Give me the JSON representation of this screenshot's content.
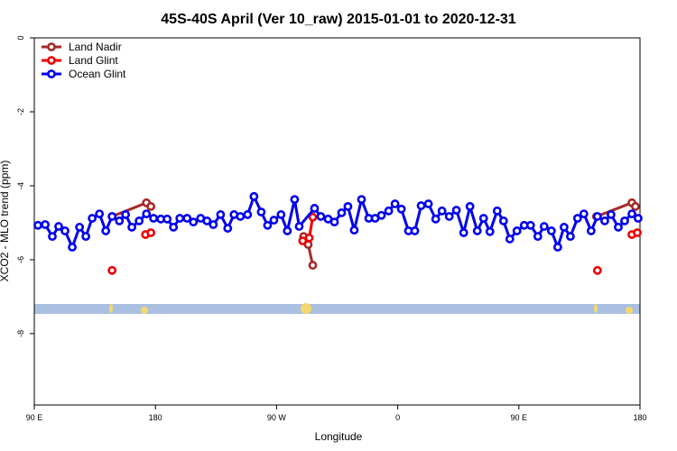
{
  "chart_data": {
    "type": "line",
    "title": "45S-40S April (Ver 10_raw)   2015-01-01 to 2020-12-31",
    "x_label": "Longitude",
    "y_label": "XCO2 - MLO trend (ppm)",
    "xlim": [
      90,
      540
    ],
    "ylim": [
      -9.93,
      0
    ],
    "xticks": [
      {
        "value": 90,
        "label": "90 E"
      },
      180,
      {
        "value": 270,
        "label": "90 W"
      },
      {
        "value": 360,
        "label": "0"
      },
      {
        "value": 450,
        "label": "90 E"
      },
      {
        "value": 540,
        "label": "180"
      }
    ],
    "yticks": [
      0,
      -2,
      -4,
      -6,
      -8
    ],
    "legend": "top-left",
    "series": [
      {
        "name": "Land Nadir",
        "color": "#a52a2a",
        "x": [
          147.8,
          173.3,
          176.6,
          null,
          290.1,
          293.5,
          296.9,
          null,
          507.7,
          534.0,
          536.6
        ],
        "values": [
          -4.83,
          -4.46,
          -4.56,
          null,
          -5.37,
          -5.59,
          -6.15,
          null,
          -4.83,
          -4.46,
          -4.56
        ]
      },
      {
        "name": "Land Glint",
        "color": "#ee0000",
        "x": [
          147.8,
          null,
          172.6,
          176.6,
          null,
          289.4,
          294.2,
          296.9,
          null,
          508.4,
          null,
          534.0,
          538.0
        ],
        "values": [
          -6.29,
          null,
          -5.32,
          -5.27,
          null,
          -5.49,
          -5.41,
          -4.85,
          null,
          -6.29,
          null,
          -5.32,
          -5.27
        ]
      },
      {
        "name": "Ocean Glint",
        "color": "#0000ee",
        "x": [
          92.7,
          98.1,
          103.4,
          108.1,
          112.8,
          118.2,
          123.6,
          128.3,
          133.0,
          138.4,
          143.1,
          147.8,
          153.2,
          157.8,
          162.5,
          167.9,
          173.3,
          178.6,
          184.0,
          188.7,
          193.4,
          198.1,
          203.5,
          208.2,
          213.6,
          218.3,
          223.0,
          228.4,
          233.7,
          238.4,
          243.1,
          248.5,
          253.2,
          258.6,
          263.3,
          268.0,
          273.3,
          278.0,
          283.4,
          286.8,
          298.2,
          302.9,
          308.3,
          313.0,
          318.3,
          323.0,
          327.7,
          333.1,
          338.5,
          343.2,
          347.9,
          353.3,
          358.0,
          362.7,
          368.0,
          372.7,
          377.4,
          382.8,
          388.2,
          392.9,
          398.3,
          403.6,
          409.0,
          413.7,
          419.1,
          423.8,
          428.5,
          433.9,
          438.6,
          443.3,
          448.6,
          454.0,
          458.7,
          464.1,
          468.8,
          474.2,
          478.9,
          483.6,
          488.3,
          493.6,
          498.3,
          503.7,
          508.4,
          513.8,
          518.5,
          523.9,
          528.6,
          534.0,
          538.6
        ],
        "values": [
          -5.07,
          -5.05,
          -5.37,
          -5.1,
          -5.22,
          -5.66,
          -5.12,
          -5.37,
          -4.88,
          -4.76,
          -5.22,
          -4.83,
          -4.95,
          -4.78,
          -5.12,
          -4.95,
          -4.76,
          -4.88,
          -4.9,
          -4.9,
          -5.12,
          -4.88,
          -4.88,
          -4.98,
          -4.88,
          -4.95,
          -5.05,
          -4.78,
          -5.15,
          -4.78,
          -4.83,
          -4.78,
          -4.29,
          -4.71,
          -5.07,
          -4.93,
          -4.78,
          -5.22,
          -4.37,
          -5.1,
          -4.61,
          -4.83,
          -4.9,
          -4.98,
          -4.73,
          -4.56,
          -5.2,
          -4.37,
          -4.88,
          -4.88,
          -4.8,
          -4.68,
          -4.49,
          -4.63,
          -5.22,
          -5.22,
          -4.54,
          -4.49,
          -4.9,
          -4.68,
          -4.83,
          -4.66,
          -5.27,
          -4.56,
          -5.22,
          -4.88,
          -5.24,
          -4.68,
          -4.95,
          -5.44,
          -5.22,
          -5.07,
          -5.07,
          -5.37,
          -5.1,
          -5.22,
          -5.66,
          -5.12,
          -5.37,
          -4.88,
          -4.76,
          -5.22,
          -4.83,
          -4.95,
          -4.78,
          -5.12,
          -4.95,
          -4.76,
          -4.88
        ]
      }
    ]
  }
}
